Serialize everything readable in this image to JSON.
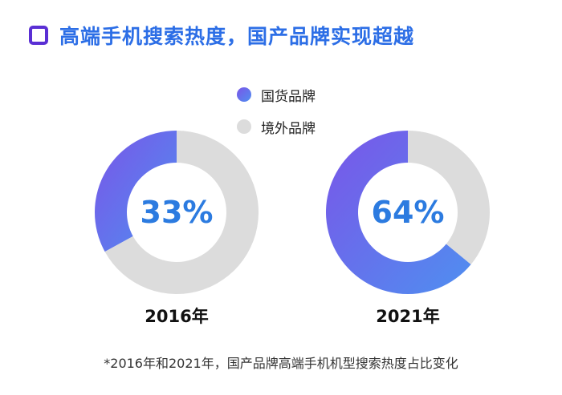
{
  "title": "高端手机搜索热度，国产品牌实现超越",
  "colors": {
    "domestic_start": "#7a55e8",
    "domestic_end": "#4f8ff0",
    "foreign": "#dcdcdc",
    "title": "#2c6ee6",
    "marker": "#5a2fd4",
    "center_text": "#2c7be0"
  },
  "legend": [
    {
      "label": "国货品牌",
      "series": "domestic"
    },
    {
      "label": "境外品牌",
      "series": "foreign"
    }
  ],
  "chart_data": [
    {
      "type": "pie",
      "category": "2016年",
      "center_label": "33%",
      "series": [
        {
          "name": "国货品牌",
          "value": 33
        },
        {
          "name": "境外品牌",
          "value": 67
        }
      ]
    },
    {
      "type": "pie",
      "category": "2021年",
      "center_label": "64%",
      "series": [
        {
          "name": "国货品牌",
          "value": 64
        },
        {
          "name": "境外品牌",
          "value": 36
        }
      ]
    }
  ],
  "footnote": "*2016年和2021年，国产品牌高端手机机型搜索热度占比变化"
}
